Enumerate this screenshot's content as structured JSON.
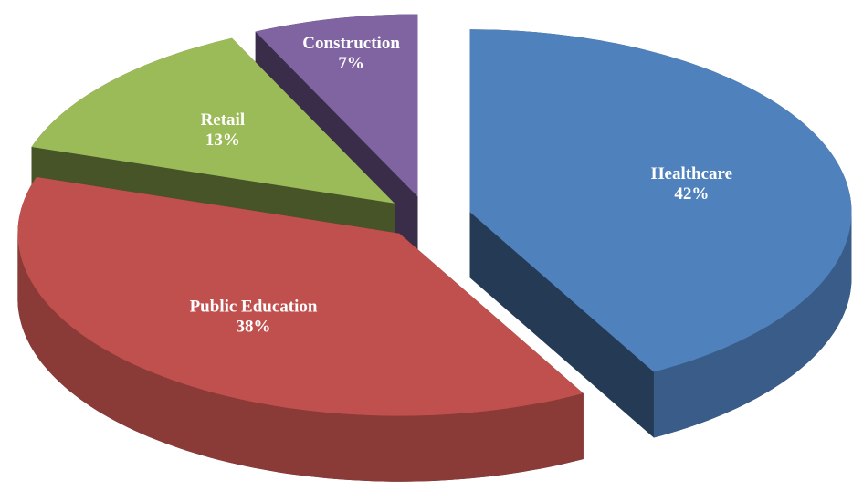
{
  "chart_data": {
    "type": "pie",
    "categories": [
      "Healthcare",
      "Public Education",
      "Retail",
      "Construction"
    ],
    "values": [
      42,
      38,
      13,
      7
    ],
    "value_labels": [
      "42%",
      "38%",
      "13%",
      "7%"
    ],
    "colors": [
      "#4f81bd",
      "#c0504d",
      "#9bbb59",
      "#8064a2"
    ]
  }
}
